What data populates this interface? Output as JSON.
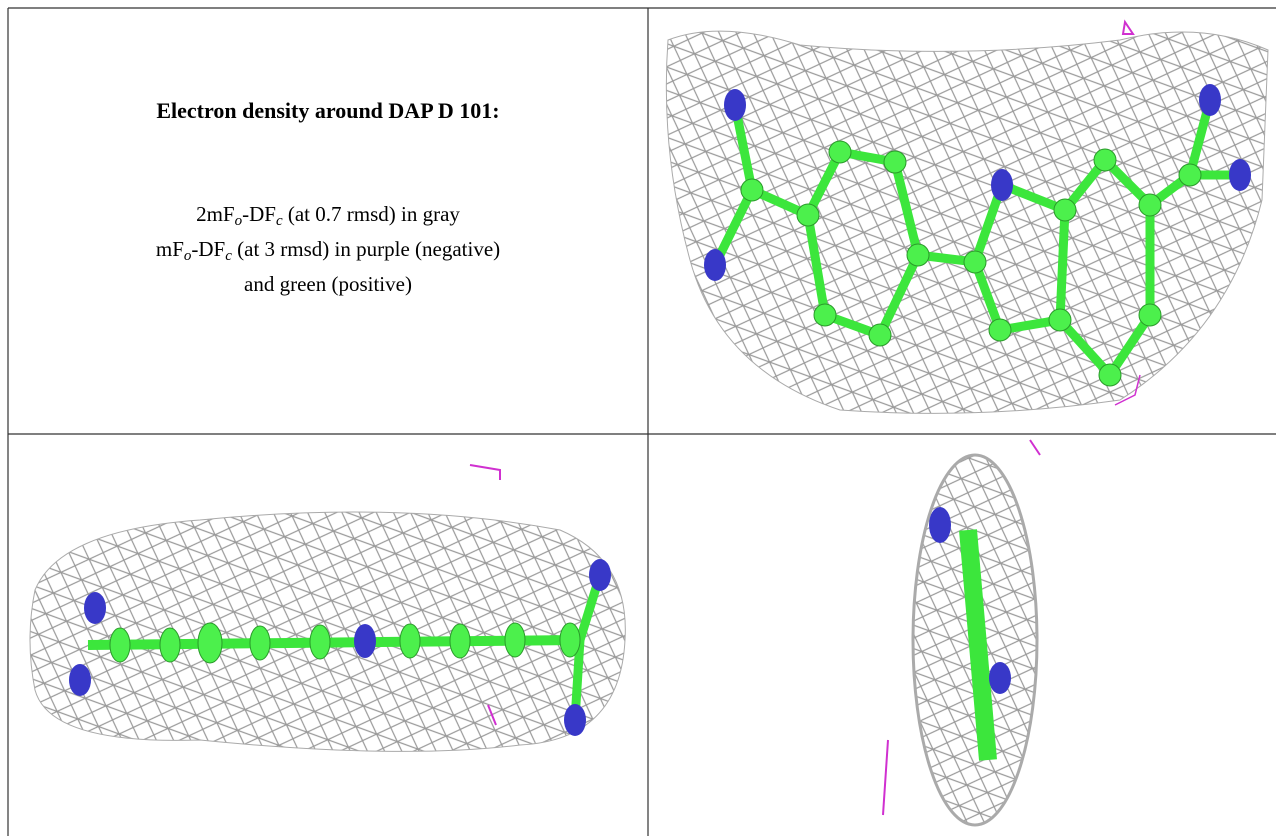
{
  "cell": {
    "title": "Electron density around DAP D 101:",
    "lines": [
      [
        "2mF",
        "o",
        "-DF",
        "c",
        " (at 0.7 rmsd) in gray"
      ],
      [
        "mF",
        "o",
        "-DF",
        "c",
        " (at 3 rmsd) in purple (negative)"
      ],
      [
        "and green (positive)"
      ]
    ]
  }
}
